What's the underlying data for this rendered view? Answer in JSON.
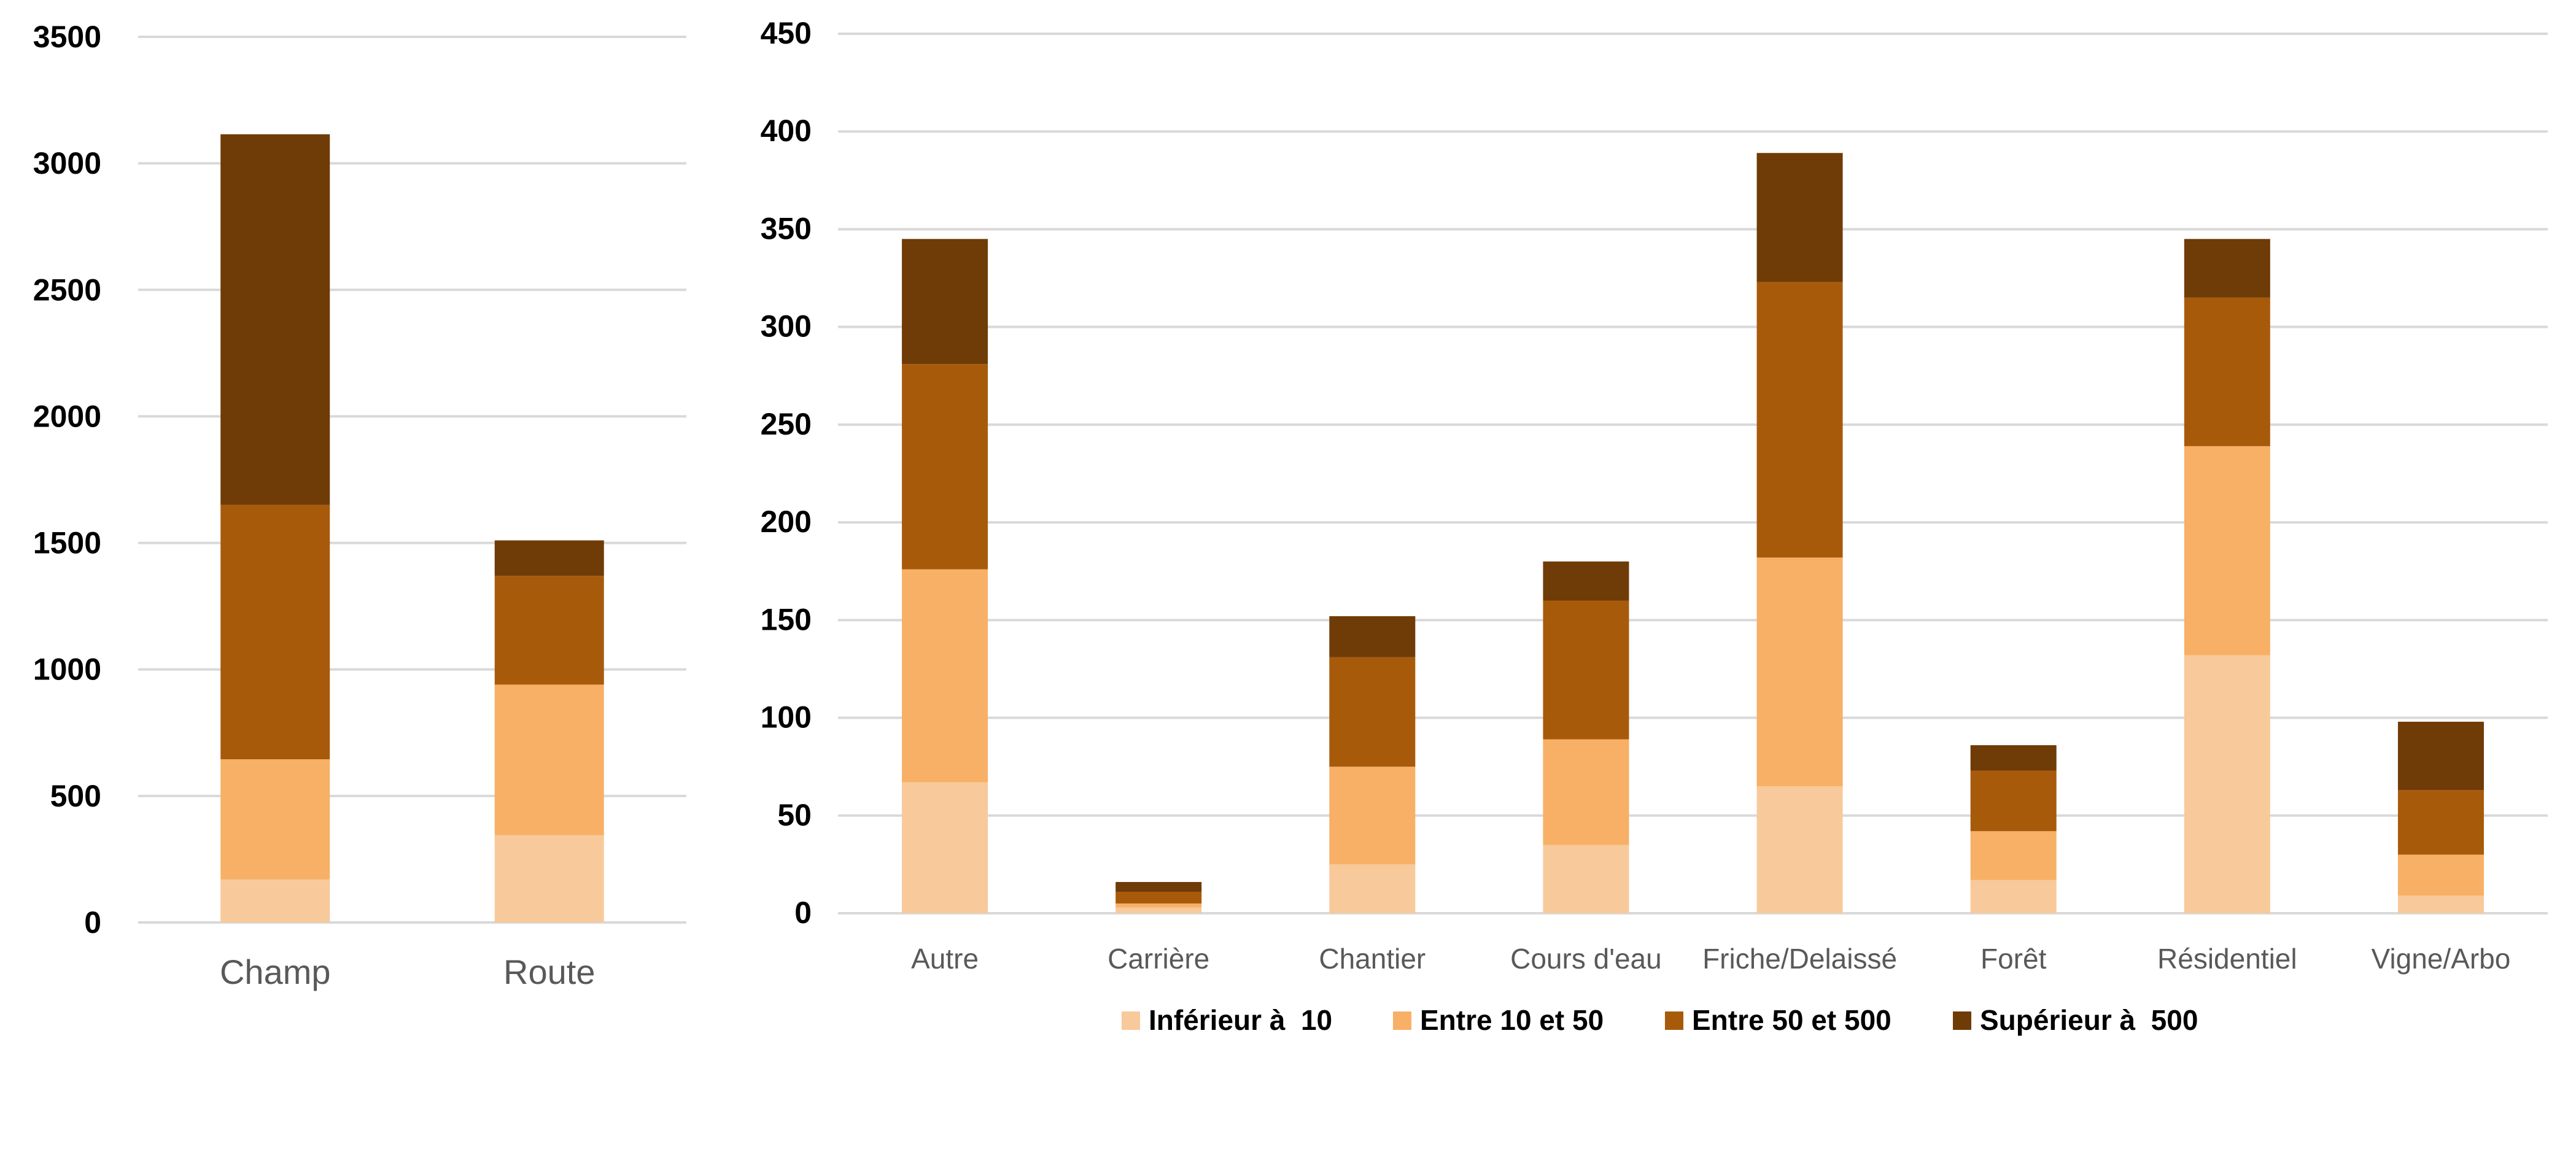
{
  "series_names": [
    "Inférieur à  10",
    "Entre 10 et 50",
    "Entre 50 et 500",
    "Supérieur à  500"
  ],
  "colors": [
    "#f8c99a",
    "#f7b066",
    "#a85a0b",
    "#6f3b06"
  ],
  "chart_data": [
    {
      "type": "bar",
      "stacked": true,
      "title": "",
      "xlabel": "",
      "ylabel": "",
      "categories": [
        "Champ",
        "Route"
      ],
      "series": [
        {
          "name": "Inférieur à  10",
          "values": [
            170,
            345
          ]
        },
        {
          "name": "Entre 10 et 50",
          "values": [
            475,
            595
          ]
        },
        {
          "name": "Entre 50 et 500",
          "values": [
            1005,
            430
          ]
        },
        {
          "name": "Supérieur à  500",
          "values": [
            1465,
            140
          ]
        }
      ],
      "ylim": [
        0,
        3500
      ],
      "yticks": [
        "0",
        "500",
        "1000",
        "1500",
        "2000",
        "2500",
        "3000",
        "3500"
      ],
      "grid": true
    },
    {
      "type": "bar",
      "stacked": true,
      "title": "",
      "xlabel": "",
      "ylabel": "",
      "categories": [
        "Autre",
        "Carrière",
        "Chantier",
        "Cours d'eau",
        "Friche/Delaissé",
        "Forêt",
        "Résidentiel",
        "Vigne/Arbo"
      ],
      "series": [
        {
          "name": "Inférieur à  10",
          "values": [
            67,
            3,
            25,
            35,
            65,
            17,
            132,
            9
          ]
        },
        {
          "name": "Entre 10 et 50",
          "values": [
            109,
            2,
            50,
            54,
            117,
            25,
            107,
            21
          ]
        },
        {
          "name": "Entre 50 et 500",
          "values": [
            105,
            6,
            56,
            71,
            141,
            31,
            76,
            33
          ]
        },
        {
          "name": "Supérieur à  500",
          "values": [
            64,
            5,
            21,
            20,
            66,
            13,
            30,
            35
          ]
        }
      ],
      "ylim": [
        0,
        450
      ],
      "yticks": [
        "0",
        "50",
        "100",
        "150",
        "200",
        "250",
        "300",
        "350",
        "400",
        "450"
      ],
      "grid": true,
      "legend": "bottom"
    }
  ]
}
